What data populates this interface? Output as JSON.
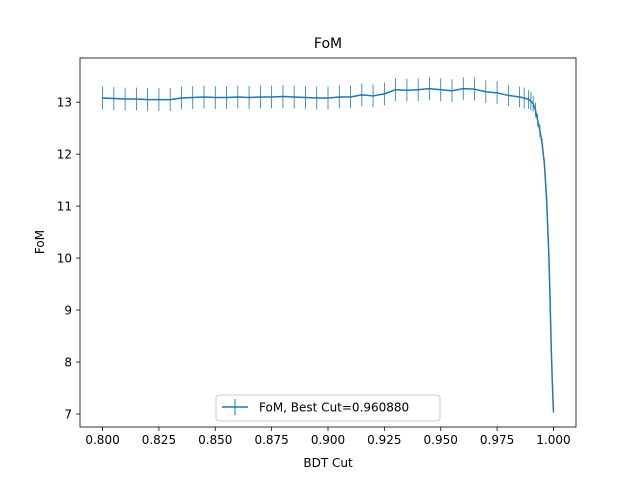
{
  "chart_data": {
    "type": "line",
    "title": "FoM",
    "xlabel": "BDT Cut",
    "ylabel": "FoM",
    "xlim": [
      0.79,
      1.01
    ],
    "ylim": [
      6.75,
      13.85
    ],
    "x_ticks": [
      "0.800",
      "0.825",
      "0.850",
      "0.875",
      "0.900",
      "0.925",
      "0.950",
      "0.975",
      "1.000"
    ],
    "y_ticks": [
      "7",
      "8",
      "9",
      "10",
      "11",
      "12",
      "13"
    ],
    "grid": false,
    "legend": {
      "location": "bottom-center"
    },
    "error_bars": true,
    "color": "#1f77b4",
    "series": [
      {
        "name": "FoM, Best Cut=0.960880",
        "x": [
          0.8,
          0.805,
          0.81,
          0.815,
          0.82,
          0.825,
          0.83,
          0.835,
          0.84,
          0.845,
          0.85,
          0.855,
          0.86,
          0.865,
          0.87,
          0.875,
          0.88,
          0.885,
          0.89,
          0.895,
          0.9,
          0.905,
          0.91,
          0.915,
          0.92,
          0.925,
          0.93,
          0.935,
          0.94,
          0.945,
          0.95,
          0.955,
          0.96,
          0.965,
          0.97,
          0.975,
          0.98,
          0.985,
          0.987,
          0.989,
          0.99,
          0.991,
          0.992,
          0.993,
          0.994,
          0.995,
          0.996,
          0.997,
          0.998,
          0.9985,
          0.999,
          0.9995,
          1.0
        ],
        "y": [
          13.08,
          13.07,
          13.06,
          13.06,
          13.05,
          13.05,
          13.05,
          13.08,
          13.09,
          13.1,
          13.09,
          13.09,
          13.1,
          13.09,
          13.1,
          13.1,
          13.11,
          13.1,
          13.09,
          13.08,
          13.08,
          13.1,
          13.1,
          13.14,
          13.12,
          13.16,
          13.24,
          13.23,
          13.24,
          13.26,
          13.24,
          13.22,
          13.26,
          13.25,
          13.2,
          13.18,
          13.13,
          13.1,
          13.08,
          13.05,
          13.02,
          12.97,
          12.85,
          12.65,
          12.45,
          12.2,
          11.8,
          11.1,
          10.0,
          9.2,
          8.3,
          7.6,
          7.05
        ],
        "errors": [
          0.22,
          0.22,
          0.22,
          0.22,
          0.22,
          0.22,
          0.22,
          0.22,
          0.22,
          0.22,
          0.22,
          0.22,
          0.22,
          0.22,
          0.22,
          0.22,
          0.22,
          0.22,
          0.22,
          0.22,
          0.22,
          0.22,
          0.22,
          0.22,
          0.22,
          0.22,
          0.22,
          0.22,
          0.22,
          0.22,
          0.22,
          0.22,
          0.22,
          0.22,
          0.22,
          0.22,
          0.2,
          0.2,
          0.2,
          0.18,
          0.18,
          0.15,
          0.14,
          0.12,
          0.12,
          0.1,
          0.1,
          0.08,
          0.08,
          0.06,
          0.05,
          0.04,
          0.03
        ]
      }
    ]
  }
}
